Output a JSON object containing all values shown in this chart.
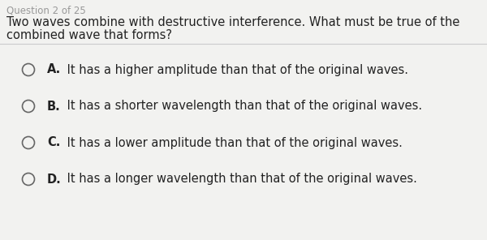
{
  "header": "Question 2 of 25",
  "question_line1": "Two waves combine with destructive interference. What must be true of the",
  "question_line2": "combined wave that forms?",
  "options": [
    {
      "letter": "A.",
      "text": " It has a higher amplitude than that of the original waves."
    },
    {
      "letter": "B.",
      "text": " It has a shorter wavelength than that of the original waves."
    },
    {
      "letter": "C.",
      "text": " It has a lower amplitude than that of the original waves."
    },
    {
      "letter": "D.",
      "text": " It has a longer wavelength than that of the original waves."
    }
  ],
  "bg_color": "#f2f2f0",
  "header_color": "#999999",
  "question_color": "#222222",
  "option_color": "#222222",
  "divider_color": "#cccccc",
  "circle_color": "#666666",
  "header_fontsize": 8.5,
  "question_fontsize": 10.5,
  "option_fontsize": 10.5
}
